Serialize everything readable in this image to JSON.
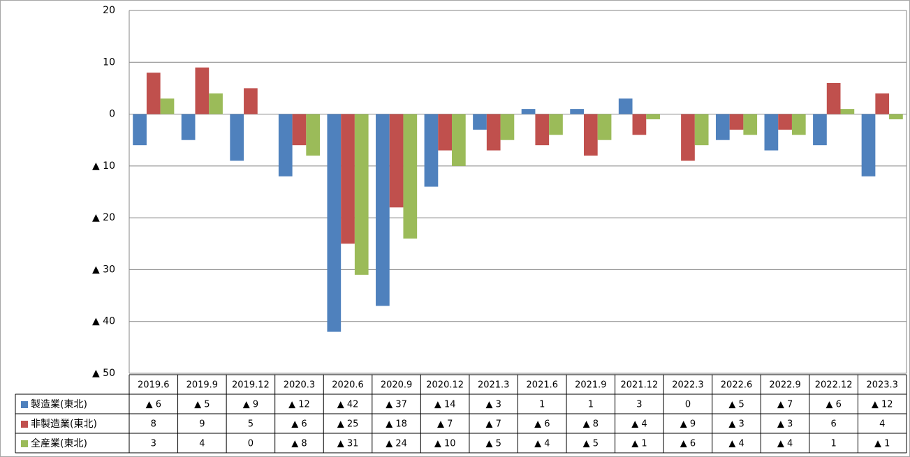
{
  "chart_data": {
    "type": "bar",
    "categories": [
      "2019.6",
      "2019.9",
      "2019.12",
      "2020.3",
      "2020.6",
      "2020.9",
      "2020.12",
      "2021.3",
      "2021.6",
      "2021.9",
      "2021.12",
      "2022.3",
      "2022.6",
      "2022.9",
      "2022.12",
      "2023.3"
    ],
    "series": [
      {
        "name": "製造業(東北)",
        "color": "#4f81bd",
        "values": [
          -6,
          -5,
          -9,
          -12,
          -42,
          -37,
          -14,
          -3,
          1,
          1,
          3,
          0,
          -5,
          -7,
          -6,
          -12
        ],
        "value_labels": [
          "▲ 6",
          "▲ 5",
          "▲ 9",
          "▲ 12",
          "▲ 42",
          "▲ 37",
          "▲ 14",
          "▲ 3",
          "1",
          "1",
          "3",
          "0",
          "▲ 5",
          "▲ 7",
          "▲ 6",
          "▲ 12"
        ]
      },
      {
        "name": "非製造業(東北)",
        "color": "#c0504d",
        "values": [
          8,
          9,
          5,
          -6,
          -25,
          -18,
          -7,
          -7,
          -6,
          -8,
          -4,
          -9,
          -3,
          -3,
          6,
          4
        ],
        "value_labels": [
          "8",
          "9",
          "5",
          "▲ 6",
          "▲ 25",
          "▲ 18",
          "▲ 7",
          "▲ 7",
          "▲ 6",
          "▲ 8",
          "▲ 4",
          "▲ 9",
          "▲ 3",
          "▲ 3",
          "6",
          "4"
        ]
      },
      {
        "name": "全産業(東北)",
        "color": "#9bbb59",
        "values": [
          3,
          4,
          0,
          -8,
          -31,
          -24,
          -10,
          -5,
          -4,
          -5,
          -1,
          -6,
          -4,
          -4,
          1,
          -1
        ],
        "value_labels": [
          "3",
          "4",
          "0",
          "▲ 8",
          "▲ 31",
          "▲ 24",
          "▲ 10",
          "▲ 5",
          "▲ 4",
          "▲ 5",
          "▲ 1",
          "▲ 6",
          "▲ 4",
          "▲ 4",
          "1",
          "▲ 1"
        ]
      }
    ],
    "ylim": [
      -50,
      20
    ],
    "yticks": [
      {
        "value": -50,
        "label": "▲ 50"
      },
      {
        "value": -40,
        "label": "▲ 40"
      },
      {
        "value": -30,
        "label": "▲ 30"
      },
      {
        "value": -20,
        "label": "▲ 20"
      },
      {
        "value": -10,
        "label": "▲ 10"
      },
      0,
      10,
      20
    ],
    "grid": true
  }
}
